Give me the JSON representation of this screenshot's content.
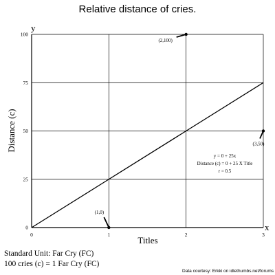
{
  "chart_data": {
    "type": "line",
    "title": "Relative distance of cries.",
    "xlabel": "Titles",
    "ylabel": "Distance (c)",
    "x_axis_letter": "x",
    "y_axis_letter": "y",
    "xlim": [
      0,
      3
    ],
    "ylim": [
      0,
      100
    ],
    "x_ticks": [
      0,
      1,
      2,
      3
    ],
    "x_tick_labels": [
      "0",
      "1",
      "2",
      "3"
    ],
    "y_ticks": [
      0,
      25,
      50,
      75,
      100
    ],
    "y_tick_labels": [
      "0",
      "25",
      "50",
      "75",
      "100"
    ],
    "grid": true,
    "series": [
      {
        "x": [
          0,
          1,
          2,
          3
        ],
        "y": [
          0,
          25,
          50,
          75
        ],
        "color": "#000000"
      }
    ],
    "points": [
      {
        "x": 1,
        "y": 0,
        "label": "(1,0)"
      },
      {
        "x": 2,
        "y": 100,
        "label": "(2,100)"
      },
      {
        "x": 3,
        "y": 50,
        "label": "(3,50)"
      }
    ],
    "equation_lines": [
      "y = 0 + 25x",
      "Distance (c) = 0 + 25 X Title",
      "r = 0.5"
    ],
    "footnote_lines": [
      "Standard Unit: Far Cry (FC)",
      "100 cries (c) = 1 Far Cry (FC)"
    ],
    "credit": "Data courtesy: Erkki on idlethumbs.net/forums"
  }
}
